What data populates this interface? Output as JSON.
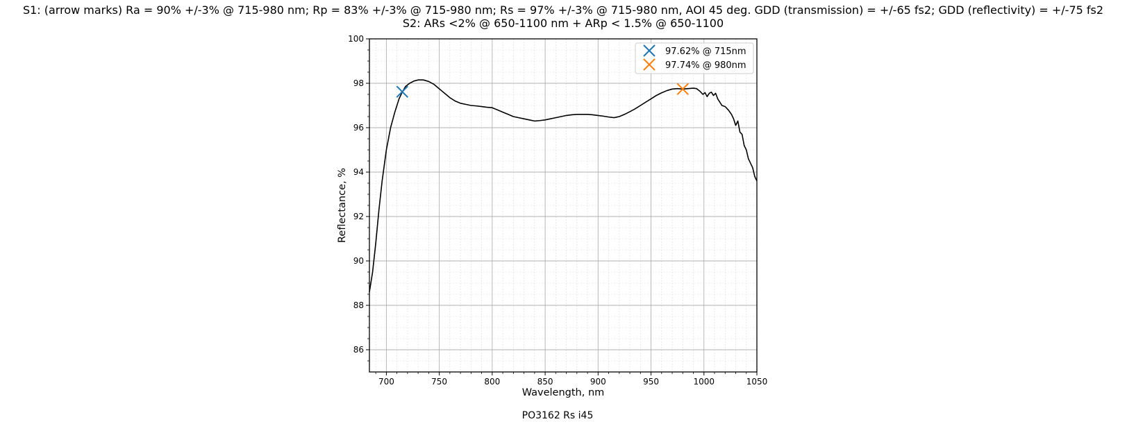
{
  "chart_data": {
    "type": "line",
    "title_line1": "S1: (arrow marks) Ra = 90% +/-3% @ 715-980 nm; Rp = 83% +/-3% @ 715-980 nm; Rs = 97% +/-3% @ 715-980 nm, AOI 45 deg. GDD (transmission) = +/-65 fs2; GDD (reflectivity) = +/-75 fs2",
    "title_line2": "S2: ARs <2% @ 650-1100 nm + ARp < 1.5% @ 650-1100",
    "xlabel": "Wavelength, nm",
    "ylabel": "Reflectance, %",
    "footnote": "PO3162 Rs i45",
    "xlim": [
      684,
      1050
    ],
    "ylim": [
      85,
      100
    ],
    "xticks": [
      700,
      750,
      800,
      850,
      900,
      950,
      1000,
      1050
    ],
    "yticks": [
      86,
      88,
      90,
      92,
      94,
      96,
      98,
      100
    ],
    "grid": true,
    "legend_position": "top-right",
    "series": [
      {
        "color": "#000000",
        "x": [
          684,
          687,
          690,
          693,
          696,
          700,
          704,
          708,
          712,
          715,
          718,
          722,
          726,
          730,
          735,
          740,
          745,
          750,
          755,
          760,
          765,
          770,
          775,
          780,
          785,
          790,
          795,
          800,
          805,
          810,
          815,
          820,
          825,
          830,
          835,
          840,
          845,
          850,
          855,
          860,
          865,
          870,
          875,
          880,
          885,
          890,
          895,
          900,
          905,
          910,
          915,
          920,
          925,
          930,
          935,
          940,
          945,
          950,
          955,
          960,
          965,
          970,
          975,
          980,
          985,
          990,
          993,
          996,
          999,
          1001,
          1003,
          1005,
          1007,
          1009,
          1011,
          1013,
          1015,
          1017,
          1020,
          1023,
          1026,
          1028,
          1030,
          1032,
          1034,
          1036,
          1038,
          1040,
          1042,
          1044,
          1046,
          1048,
          1050
        ],
        "y": [
          88.6,
          89.5,
          90.8,
          92.3,
          93.6,
          95.0,
          96.0,
          96.7,
          97.3,
          97.6,
          97.85,
          98.0,
          98.1,
          98.15,
          98.15,
          98.08,
          97.95,
          97.75,
          97.55,
          97.35,
          97.2,
          97.1,
          97.05,
          97.0,
          96.98,
          96.95,
          96.92,
          96.9,
          96.8,
          96.7,
          96.6,
          96.5,
          96.45,
          96.4,
          96.35,
          96.3,
          96.32,
          96.35,
          96.4,
          96.45,
          96.5,
          96.55,
          96.58,
          96.6,
          96.6,
          96.6,
          96.58,
          96.55,
          96.52,
          96.48,
          96.45,
          96.5,
          96.6,
          96.72,
          96.85,
          97.0,
          97.15,
          97.3,
          97.45,
          97.57,
          97.67,
          97.74,
          97.76,
          97.74,
          97.76,
          97.78,
          97.76,
          97.65,
          97.5,
          97.58,
          97.4,
          97.55,
          97.6,
          97.45,
          97.55,
          97.3,
          97.15,
          97.0,
          96.95,
          96.8,
          96.6,
          96.4,
          96.1,
          96.3,
          95.8,
          95.7,
          95.2,
          95.0,
          94.6,
          94.4,
          94.2,
          93.8,
          93.6
        ]
      }
    ],
    "markers": [
      {
        "x": 715,
        "y": 97.62,
        "label": "97.62% @ 715nm",
        "color": "#1f77b4",
        "symbol": "x"
      },
      {
        "x": 980,
        "y": 97.74,
        "label": "97.74% @ 980nm",
        "color": "#ff7f0e",
        "symbol": "x"
      }
    ]
  }
}
